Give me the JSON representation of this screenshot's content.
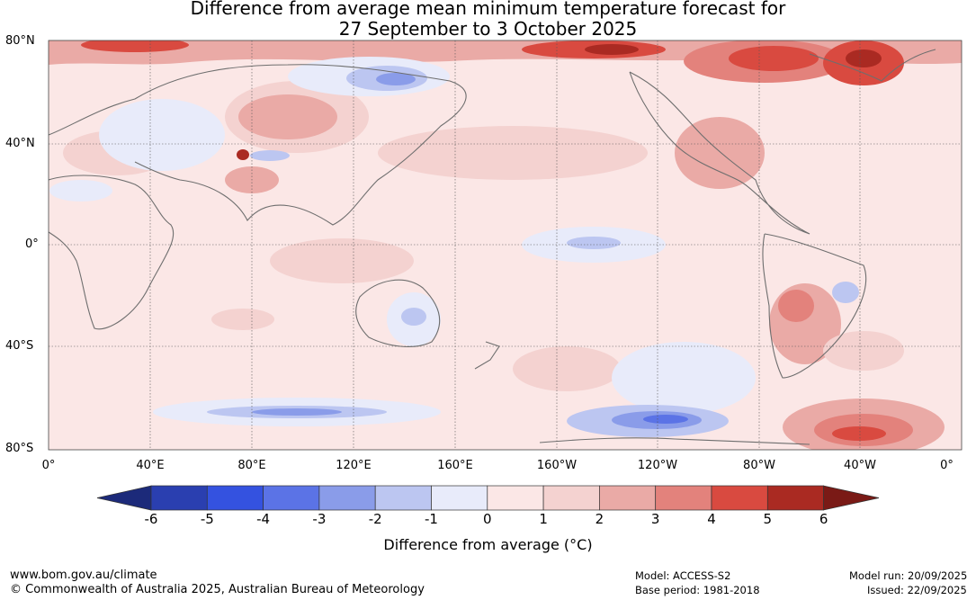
{
  "title_line1": "Difference from average mean minimum temperature forecast for",
  "title_line2": "27 September to 3 October 2025",
  "lat_labels": [
    "80°N",
    "40°N",
    "0°",
    "40°S",
    "80°S"
  ],
  "lon_labels": [
    "0°",
    "40°E",
    "80°E",
    "120°E",
    "160°E",
    "160°W",
    "120°W",
    "80°W",
    "40°W",
    "0°"
  ],
  "colorbar": {
    "ticks": [
      "-6",
      "-5",
      "-4",
      "-3",
      "-2",
      "-1",
      "0",
      "1",
      "2",
      "3",
      "4",
      "5",
      "6"
    ],
    "colors": [
      "#1c2a7a",
      "#2a3fb0",
      "#3452e0",
      "#5b73e6",
      "#8a9ce9",
      "#bcc6f1",
      "#e8ebfa",
      "#fbe7e6",
      "#f4d2d0",
      "#eaaaa6",
      "#e3827c",
      "#d94a40",
      "#aa2a22",
      "#7a1a16"
    ],
    "label": "Difference from average (°C)"
  },
  "footer": {
    "url": "www.bom.gov.au/climate",
    "copyright": "© Commonwealth of Australia 2025, Australian Bureau of Meteorology",
    "model": "Model: ACCESS-S2",
    "base_period": "Base period: 1981-2018",
    "model_run": "Model run: 20/09/2025",
    "issued": "Issued: 22/09/2025"
  }
}
